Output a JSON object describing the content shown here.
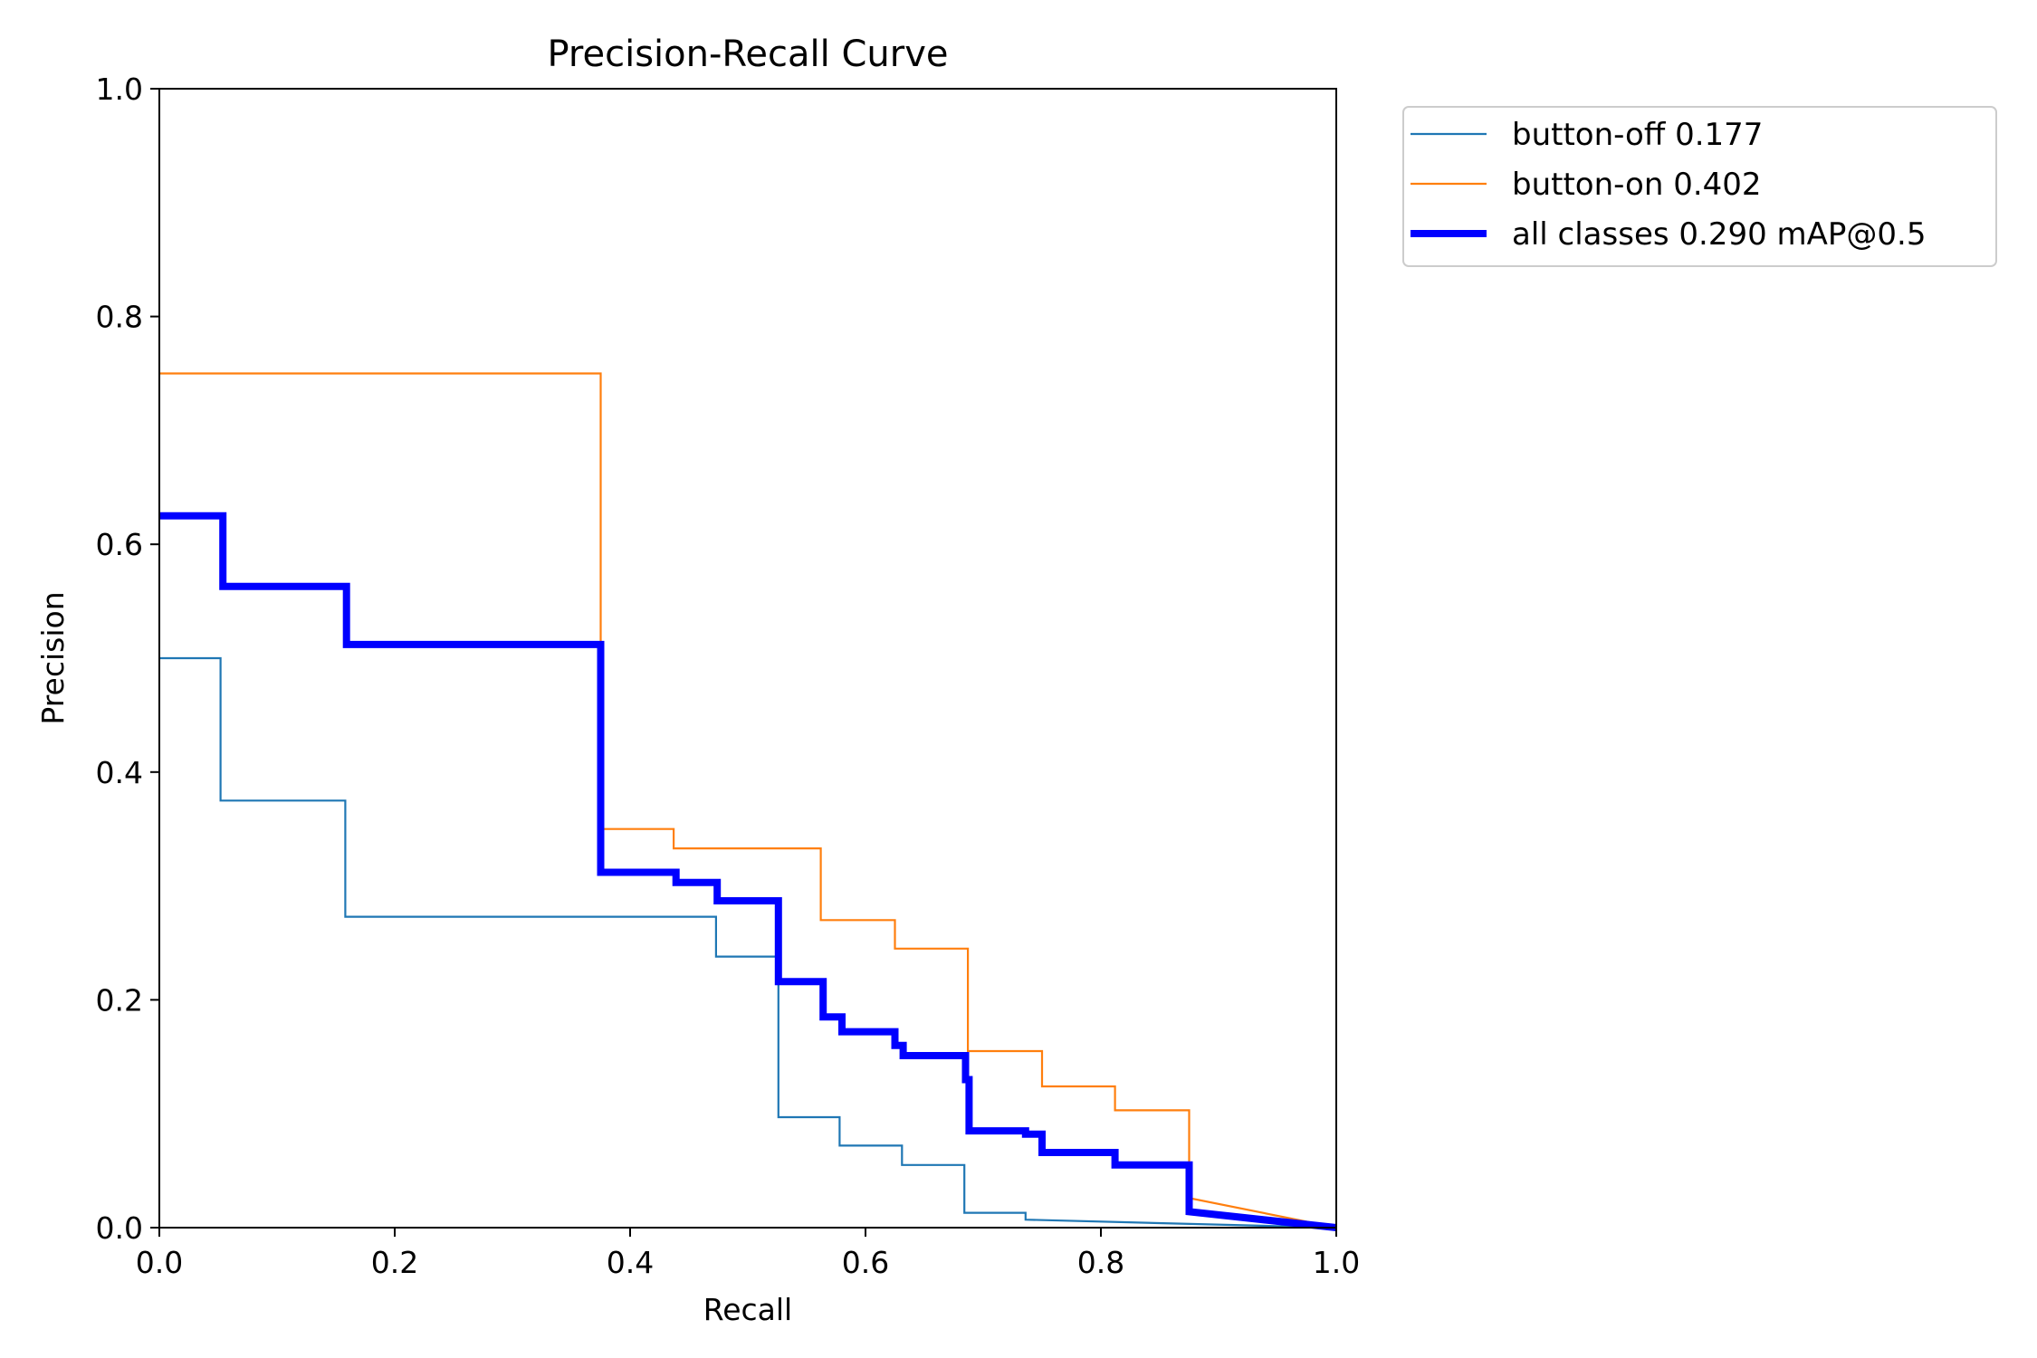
{
  "chart_data": {
    "type": "line",
    "title": "Precision-Recall Curve",
    "xlabel": "Recall",
    "ylabel": "Precision",
    "xlim": [
      0,
      1
    ],
    "ylim": [
      0,
      1
    ],
    "xticks": [
      "0.0",
      "0.2",
      "0.4",
      "0.6",
      "0.8",
      "1.0"
    ],
    "yticks": [
      "0.0",
      "0.2",
      "0.4",
      "0.6",
      "0.8",
      "1.0"
    ],
    "legend_position": "outside-right-top",
    "grid": false,
    "series": [
      {
        "name": "button-off 0.177",
        "color": "#1f77b4",
        "width": "thin",
        "points": [
          [
            0.0,
            0.5
          ],
          [
            0.052,
            0.5
          ],
          [
            0.052,
            0.375
          ],
          [
            0.158,
            0.375
          ],
          [
            0.158,
            0.273
          ],
          [
            0.473,
            0.273
          ],
          [
            0.473,
            0.238
          ],
          [
            0.526,
            0.238
          ],
          [
            0.526,
            0.097
          ],
          [
            0.578,
            0.097
          ],
          [
            0.578,
            0.072
          ],
          [
            0.631,
            0.072
          ],
          [
            0.631,
            0.055
          ],
          [
            0.684,
            0.055
          ],
          [
            0.684,
            0.013
          ],
          [
            0.736,
            0.013
          ],
          [
            0.736,
            0.007
          ],
          [
            1.0,
            0.0
          ]
        ]
      },
      {
        "name": "button-on 0.402",
        "color": "#ff7f0e",
        "width": "thin",
        "points": [
          [
            0.0,
            0.75
          ],
          [
            0.375,
            0.75
          ],
          [
            0.375,
            0.35
          ],
          [
            0.437,
            0.35
          ],
          [
            0.437,
            0.333
          ],
          [
            0.562,
            0.333
          ],
          [
            0.562,
            0.27
          ],
          [
            0.625,
            0.27
          ],
          [
            0.625,
            0.245
          ],
          [
            0.687,
            0.245
          ],
          [
            0.687,
            0.155
          ],
          [
            0.75,
            0.155
          ],
          [
            0.75,
            0.124
          ],
          [
            0.812,
            0.124
          ],
          [
            0.812,
            0.103
          ],
          [
            0.875,
            0.103
          ],
          [
            0.875,
            0.026
          ],
          [
            1.0,
            0.0
          ]
        ]
      },
      {
        "name": "all classes 0.290 mAP@0.5",
        "color": "#0000ff",
        "width": "thick",
        "points": [
          [
            0.0,
            0.625
          ],
          [
            0.054,
            0.625
          ],
          [
            0.054,
            0.563
          ],
          [
            0.159,
            0.563
          ],
          [
            0.159,
            0.512
          ],
          [
            0.375,
            0.512
          ],
          [
            0.375,
            0.312
          ],
          [
            0.439,
            0.312
          ],
          [
            0.439,
            0.303
          ],
          [
            0.474,
            0.303
          ],
          [
            0.474,
            0.287
          ],
          [
            0.526,
            0.287
          ],
          [
            0.526,
            0.216
          ],
          [
            0.564,
            0.216
          ],
          [
            0.564,
            0.185
          ],
          [
            0.58,
            0.185
          ],
          [
            0.58,
            0.172
          ],
          [
            0.625,
            0.172
          ],
          [
            0.625,
            0.16
          ],
          [
            0.632,
            0.16
          ],
          [
            0.632,
            0.151
          ],
          [
            0.685,
            0.151
          ],
          [
            0.685,
            0.13
          ],
          [
            0.688,
            0.13
          ],
          [
            0.688,
            0.085
          ],
          [
            0.736,
            0.085
          ],
          [
            0.736,
            0.082
          ],
          [
            0.75,
            0.082
          ],
          [
            0.75,
            0.066
          ],
          [
            0.812,
            0.066
          ],
          [
            0.812,
            0.055
          ],
          [
            0.875,
            0.055
          ],
          [
            0.875,
            0.014
          ],
          [
            1.0,
            0.0
          ]
        ]
      }
    ]
  }
}
